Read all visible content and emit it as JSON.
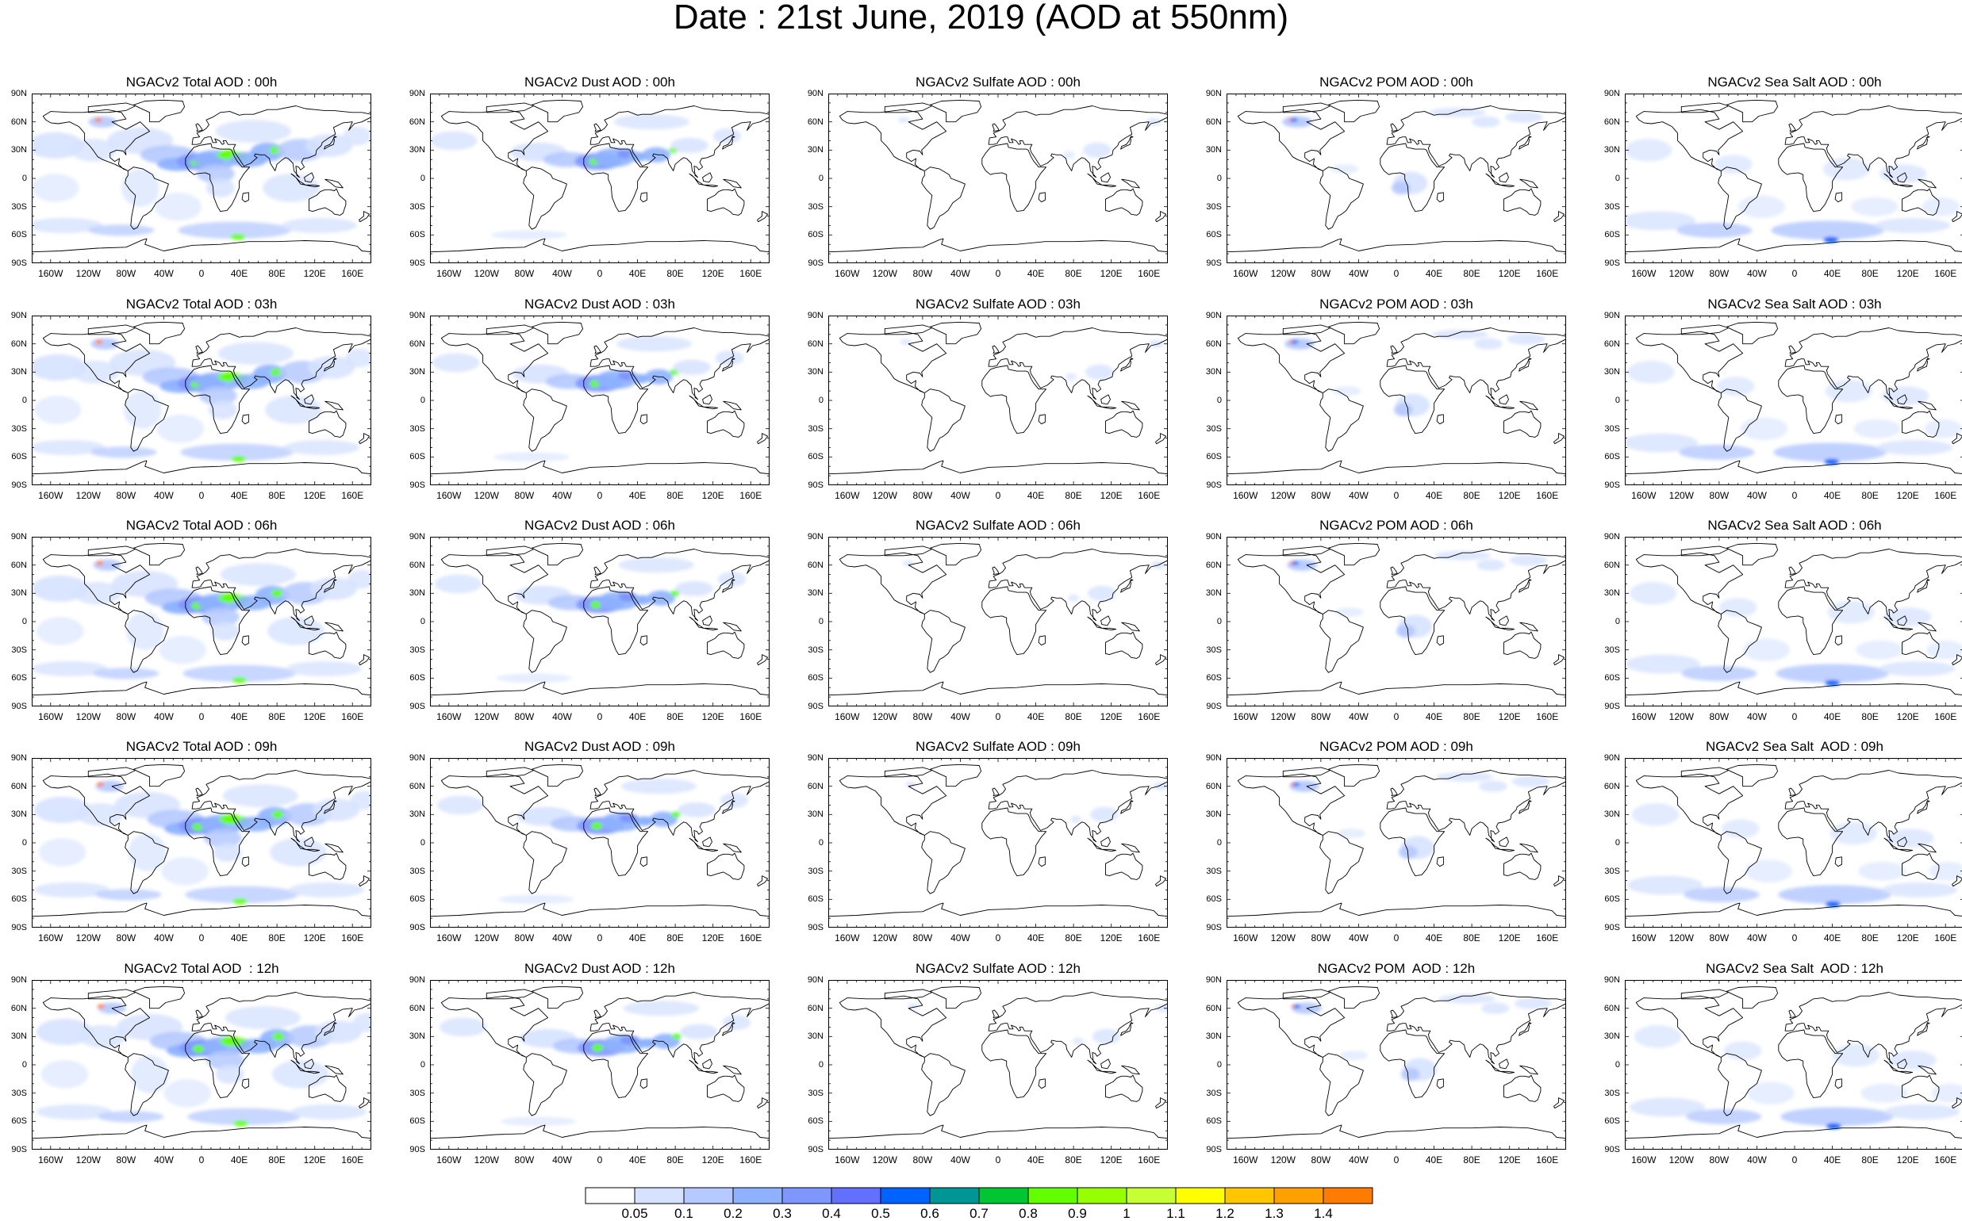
{
  "title": "Date : 21st June, 2019 (AOD at 550nm)",
  "map_axes": {
    "lat_ticks": [
      "90N",
      "60N",
      "30N",
      "0",
      "30S",
      "60S",
      "90S"
    ],
    "lon_ticks": [
      "160W",
      "120W",
      "80W",
      "40W",
      "0",
      "40E",
      "80E",
      "120E",
      "160E"
    ]
  },
  "panels": [
    [
      {
        "title": "NGACv2 Total AOD : 00h",
        "species": "total"
      },
      {
        "title": "NGACv2 Dust AOD : 00h",
        "species": "dust"
      },
      {
        "title": "NGACv2 Sulfate AOD : 00h",
        "species": "sulfate"
      },
      {
        "title": "NGACv2 POM AOD : 00h",
        "species": "pom"
      },
      {
        "title": "NGACv2 Sea Salt AOD : 00h",
        "species": "seasalt"
      }
    ],
    [
      {
        "title": "NGACv2 Total AOD : 03h",
        "species": "total"
      },
      {
        "title": "NGACv2 Dust AOD : 03h",
        "species": "dust"
      },
      {
        "title": "NGACv2 Sulfate AOD : 03h",
        "species": "sulfate"
      },
      {
        "title": "NGACv2 POM AOD : 03h",
        "species": "pom"
      },
      {
        "title": "NGACv2 Sea Salt AOD : 03h",
        "species": "seasalt"
      }
    ],
    [
      {
        "title": "NGACv2 Total AOD : 06h",
        "species": "total"
      },
      {
        "title": "NGACv2 Dust AOD : 06h",
        "species": "dust"
      },
      {
        "title": "NGACv2 Sulfate AOD : 06h",
        "species": "sulfate"
      },
      {
        "title": "NGACv2 POM AOD : 06h",
        "species": "pom"
      },
      {
        "title": "NGACv2 Sea Salt AOD : 06h",
        "species": "seasalt"
      }
    ],
    [
      {
        "title": "NGACv2 Total AOD : 09h",
        "species": "total"
      },
      {
        "title": "NGACv2 Dust AOD : 09h",
        "species": "dust"
      },
      {
        "title": "NGACv2 Sulfate AOD : 09h",
        "species": "sulfate"
      },
      {
        "title": "NGACv2 POM AOD : 09h",
        "species": "pom"
      },
      {
        "title": "NGACv2 Sea Salt  AOD : 09h",
        "species": "seasalt"
      }
    ],
    [
      {
        "title": "NGACv2 Total AOD  : 12h",
        "species": "total"
      },
      {
        "title": "NGACv2 Dust AOD : 12h",
        "species": "dust"
      },
      {
        "title": "NGACv2 Sulfate AOD : 12h",
        "species": "sulfate"
      },
      {
        "title": "NGACv2 POM  AOD : 12h",
        "species": "pom"
      },
      {
        "title": "NGACv2 Sea Salt  AOD : 12h",
        "species": "seasalt"
      }
    ]
  ],
  "colorbar": {
    "labels": [
      "0.05",
      "0.1",
      "0.2",
      "0.3",
      "0.4",
      "0.5",
      "0.6",
      "0.7",
      "0.8",
      "0.9",
      "1",
      "1.1",
      "1.2",
      "1.3",
      "1.4"
    ],
    "colors": [
      "#ffffff",
      "#d6e2ff",
      "#b5c9ff",
      "#8eb2ff",
      "#7f96ff",
      "#6370ff",
      "#0063ff",
      "#009696",
      "#00c633",
      "#63ff00",
      "#96ff00",
      "#c6ff33",
      "#ffff00",
      "#ffc600",
      "#ffa000",
      "#ff7c00",
      "#ff1900"
    ]
  }
}
